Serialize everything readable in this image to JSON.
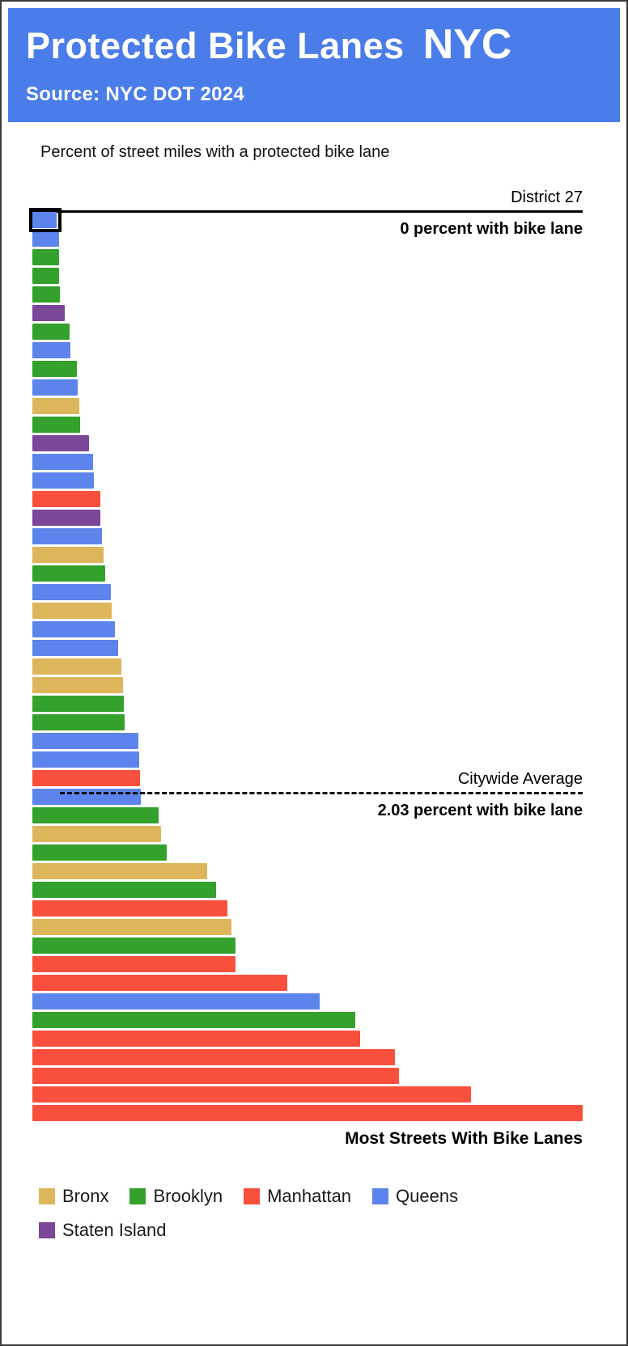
{
  "header": {
    "title": "Protected Bike Lanes",
    "title_suffix": "NYC",
    "source": "Source: NYC DOT 2024",
    "background": "#4a7de9"
  },
  "colors": {
    "Bronx": "#ddb65c",
    "Brooklyn": "#33a12c",
    "Manhattan": "#f9503e",
    "Queens": "#5d84ec",
    "Staten Island": "#7c4798"
  },
  "chart_data": {
    "type": "bar",
    "orientation": "horizontal",
    "title": "Percent of street miles with a protected bike lane",
    "unit": "percent of street miles",
    "sort": "ascending",
    "max_value": 10.19,
    "min_bar_display_pct": 4.4,
    "legend": [
      "Bronx",
      "Brooklyn",
      "Manhattan",
      "Queens",
      "Staten Island"
    ],
    "annotations": {
      "top": {
        "label": "District 27",
        "detail": "0 percent with bike lane",
        "highlighted_bar_index": 0
      },
      "average": {
        "label": "Citywide Average",
        "detail": "2.03 percent with bike lane",
        "value": 2.03,
        "line_above_bar_index": 34
      },
      "bottom": {
        "label": "Most Streets With Bike Lanes"
      }
    },
    "bars": [
      {
        "borough": "Queens",
        "value": 0.0
      },
      {
        "borough": "Queens",
        "value": 0.04
      },
      {
        "borough": "Brooklyn",
        "value": 0.05
      },
      {
        "borough": "Brooklyn",
        "value": 0.05
      },
      {
        "borough": "Brooklyn",
        "value": 0.06
      },
      {
        "borough": "Staten Island",
        "value": 0.16
      },
      {
        "borough": "Brooklyn",
        "value": 0.25
      },
      {
        "borough": "Queens",
        "value": 0.26
      },
      {
        "borough": "Brooklyn",
        "value": 0.4
      },
      {
        "borough": "Queens",
        "value": 0.41
      },
      {
        "borough": "Bronx",
        "value": 0.44
      },
      {
        "borough": "Brooklyn",
        "value": 0.45
      },
      {
        "borough": "Staten Island",
        "value": 0.63
      },
      {
        "borough": "Queens",
        "value": 0.71
      },
      {
        "borough": "Queens",
        "value": 0.72
      },
      {
        "borough": "Manhattan",
        "value": 0.84
      },
      {
        "borough": "Staten Island",
        "value": 0.84
      },
      {
        "borough": "Queens",
        "value": 0.88
      },
      {
        "borough": "Bronx",
        "value": 0.91
      },
      {
        "borough": "Brooklyn",
        "value": 0.94
      },
      {
        "borough": "Queens",
        "value": 1.05
      },
      {
        "borough": "Bronx",
        "value": 1.06
      },
      {
        "borough": "Queens",
        "value": 1.13
      },
      {
        "borough": "Queens",
        "value": 1.19
      },
      {
        "borough": "Bronx",
        "value": 1.25
      },
      {
        "borough": "Bronx",
        "value": 1.28
      },
      {
        "borough": "Brooklyn",
        "value": 1.31
      },
      {
        "borough": "Brooklyn",
        "value": 1.32
      },
      {
        "borough": "Queens",
        "value": 1.59
      },
      {
        "borough": "Queens",
        "value": 1.6
      },
      {
        "borough": "Manhattan",
        "value": 1.61
      },
      {
        "borough": "Queens",
        "value": 1.63
      },
      {
        "borough": "Brooklyn",
        "value": 1.97
      },
      {
        "borough": "Bronx",
        "value": 2.03
      },
      {
        "borough": "Brooklyn",
        "value": 2.13
      },
      {
        "borough": "Bronx",
        "value": 2.91
      },
      {
        "borough": "Brooklyn",
        "value": 3.09
      },
      {
        "borough": "Manhattan",
        "value": 3.31
      },
      {
        "borough": "Bronx",
        "value": 3.38
      },
      {
        "borough": "Brooklyn",
        "value": 3.46
      },
      {
        "borough": "Manhattan",
        "value": 3.47
      },
      {
        "borough": "Manhattan",
        "value": 4.47
      },
      {
        "borough": "Queens",
        "value": 5.09
      },
      {
        "borough": "Brooklyn",
        "value": 5.78
      },
      {
        "borough": "Manhattan",
        "value": 5.88
      },
      {
        "borough": "Manhattan",
        "value": 6.56
      },
      {
        "borough": "Manhattan",
        "value": 6.63
      },
      {
        "borough": "Manhattan",
        "value": 8.02
      },
      {
        "borough": "Manhattan",
        "value": 10.19
      }
    ]
  }
}
